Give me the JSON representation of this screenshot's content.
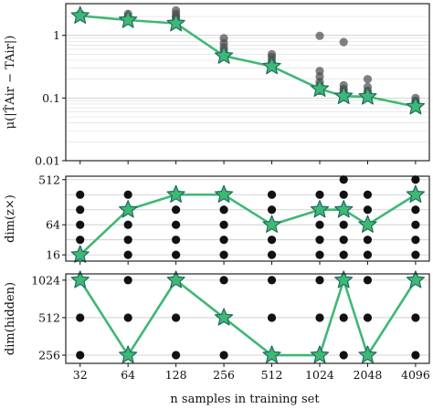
{
  "chart_data": [
    {
      "type": "scatter",
      "panel": "top",
      "ylabel": "μ(|T̂Air − TAir|)",
      "yscale": "log",
      "ylim": [
        0.01,
        3.2
      ],
      "yticks": [
        0.01,
        0.1,
        1
      ],
      "ytick_labels": [
        "0.01",
        "0.1",
        "1"
      ],
      "grid": true,
      "point_color": "#4a4a4a",
      "scatter": [
        {
          "x": 32,
          "y": [
            2.2,
            2.1,
            2.0
          ]
        },
        {
          "x": 64,
          "y": [
            2.2,
            2.0,
            1.9,
            1.8
          ]
        },
        {
          "x": 128,
          "y": [
            2.5,
            2.2,
            2.0,
            1.9,
            1.7,
            1.6
          ]
        },
        {
          "x": 256,
          "y": [
            0.9,
            0.75,
            0.65,
            0.58,
            0.52,
            0.48
          ]
        },
        {
          "x": 512,
          "y": [
            0.5,
            0.45,
            0.4,
            0.36,
            0.33
          ]
        },
        {
          "x": 1024,
          "y": [
            0.98,
            0.27,
            0.22,
            0.18,
            0.16,
            0.14,
            0.13
          ]
        },
        {
          "x": 1448,
          "y": [
            0.78,
            0.16,
            0.14,
            0.13,
            0.12,
            0.11
          ]
        },
        {
          "x": 2048,
          "y": [
            0.2,
            0.15,
            0.13,
            0.12,
            0.11
          ]
        },
        {
          "x": 4096,
          "y": [
            0.1,
            0.09,
            0.085,
            0.08,
            0.075
          ]
        }
      ],
      "series": [
        {
          "x": [
            32,
            64,
            128,
            256,
            512,
            1024,
            1448,
            2048,
            4096
          ],
          "y": [
            2.05,
            1.75,
            1.55,
            0.47,
            0.32,
            0.14,
            0.107,
            0.105,
            0.073
          ],
          "color": "#3fb874"
        }
      ]
    },
    {
      "type": "scatter",
      "panel": "middle",
      "ylabel": "dim(z×)",
      "yscale": "log2",
      "ylim": [
        12,
        600
      ],
      "yticks": [
        16,
        64,
        512
      ],
      "ytick_labels": [
        "16",
        "64",
        "512"
      ],
      "grid": true,
      "point_color": "#111111",
      "scatter": [
        {
          "x": 32,
          "y": [
            16,
            32,
            64,
            128,
            256
          ]
        },
        {
          "x": 64,
          "y": [
            16,
            32,
            64,
            128,
            256
          ]
        },
        {
          "x": 128,
          "y": [
            16,
            32,
            64,
            128,
            256
          ]
        },
        {
          "x": 256,
          "y": [
            16,
            32,
            64,
            128,
            256
          ]
        },
        {
          "x": 512,
          "y": [
            16,
            32,
            64,
            128,
            256
          ]
        },
        {
          "x": 1024,
          "y": [
            16,
            32,
            64,
            128,
            256
          ]
        },
        {
          "x": 1448,
          "y": [
            16,
            32,
            64,
            128,
            256,
            512
          ]
        },
        {
          "x": 2048,
          "y": [
            16,
            32,
            64,
            128,
            256
          ]
        },
        {
          "x": 4096,
          "y": [
            16,
            32,
            64,
            128,
            256,
            512
          ]
        }
      ],
      "series": [
        {
          "x": [
            32,
            64,
            128,
            256,
            512,
            1024,
            1448,
            2048,
            4096
          ],
          "y": [
            16,
            128,
            256,
            256,
            64,
            128,
            128,
            64,
            256
          ],
          "color": "#3fb874"
        }
      ]
    },
    {
      "type": "scatter",
      "panel": "bottom",
      "ylabel": "dim(hidden)",
      "yscale": "log2",
      "ylim": [
        220,
        1150
      ],
      "yticks": [
        256,
        512,
        1024
      ],
      "ytick_labels": [
        "256",
        "512",
        "1024"
      ],
      "grid": true,
      "point_color": "#111111",
      "scatter": [
        {
          "x": 32,
          "y": [
            256,
            512,
            1024
          ]
        },
        {
          "x": 64,
          "y": [
            256,
            512,
            1024
          ]
        },
        {
          "x": 128,
          "y": [
            256,
            512,
            1024
          ]
        },
        {
          "x": 256,
          "y": [
            256,
            512,
            1024
          ]
        },
        {
          "x": 512,
          "y": [
            256,
            512,
            1024
          ]
        },
        {
          "x": 1024,
          "y": [
            256,
            512,
            1024
          ]
        },
        {
          "x": 1448,
          "y": [
            256,
            512,
            1024
          ]
        },
        {
          "x": 2048,
          "y": [
            256,
            512,
            1024
          ]
        },
        {
          "x": 4096,
          "y": [
            256,
            512,
            1024
          ]
        }
      ],
      "series": [
        {
          "x": [
            32,
            64,
            128,
            256,
            512,
            1024,
            1448,
            2048,
            4096
          ],
          "y": [
            1024,
            256,
            1024,
            512,
            256,
            256,
            1024,
            256,
            1024
          ],
          "color": "#3fb874"
        }
      ]
    }
  ],
  "xscale": "log2",
  "xlim": [
    26,
    5000
  ],
  "xticks": [
    32,
    64,
    128,
    256,
    512,
    1024,
    2048,
    4096
  ],
  "xtick_labels": [
    "32",
    "64",
    "128",
    "256",
    "512",
    "1024",
    "2048",
    "4096"
  ],
  "xlabel": "n samples in training set",
  "marker": "star",
  "star_fill": "#3fb874",
  "star_edge": "#1f6b60"
}
